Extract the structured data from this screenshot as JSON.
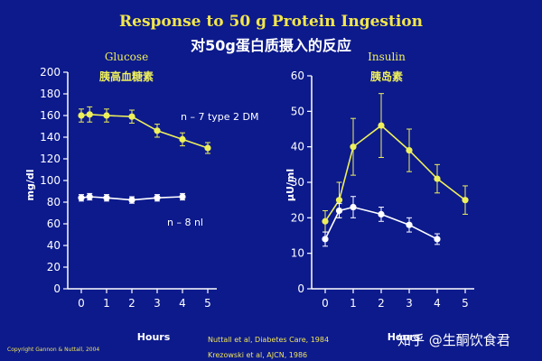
{
  "title": "Response to 50 g Protein Ingestion",
  "title_cn": "对50g蛋白质摄入的反应",
  "colors": {
    "background": "#0c1a8c",
    "title": "#f2e64a",
    "yellow_series": "#eef05a",
    "white_series": "#ffffff",
    "axis": "#ffffff"
  },
  "chart_data": [
    {
      "type": "line",
      "title": "Glucose",
      "title_cn": "胰高血糖素",
      "xlabel": "Hours",
      "ylabel": "mg/dl",
      "xlim": [
        0,
        5
      ],
      "ylim": [
        0,
        200
      ],
      "xticks": [
        0,
        1,
        2,
        3,
        4,
        5
      ],
      "yticks": [
        0,
        20,
        40,
        60,
        80,
        100,
        120,
        140,
        160,
        180,
        200
      ],
      "series": [
        {
          "name": "type 2 DM",
          "label": "n – 7  type 2 DM",
          "color": "#eef05a",
          "x": [
            0,
            0.33,
            1,
            2,
            3,
            4,
            5
          ],
          "y": [
            160,
            161,
            160,
            159,
            146,
            138,
            130
          ],
          "err": [
            6,
            7,
            6,
            6,
            6,
            6,
            5
          ]
        },
        {
          "name": "nl",
          "label": "n – 8 nl",
          "color": "#ffffff",
          "x": [
            0,
            0.33,
            1,
            2,
            3,
            4
          ],
          "y": [
            84,
            85,
            84,
            82,
            84,
            85
          ],
          "err": [
            3,
            3,
            3,
            3,
            3,
            3
          ]
        }
      ]
    },
    {
      "type": "line",
      "title": "Insulin",
      "title_cn": "胰岛素",
      "xlabel": "Hours",
      "ylabel": "μU/ml",
      "xlim": [
        0,
        5
      ],
      "ylim": [
        0,
        60
      ],
      "xticks": [
        0,
        1,
        2,
        3,
        4,
        5
      ],
      "yticks": [
        0,
        10,
        20,
        30,
        40,
        50,
        60
      ],
      "series": [
        {
          "name": "type 2 DM",
          "color": "#eef05a",
          "x": [
            0,
            0.5,
            1,
            2,
            3,
            4,
            5
          ],
          "y": [
            19,
            25,
            40,
            46,
            39,
            31,
            25
          ],
          "err": [
            3,
            5,
            8,
            9,
            6,
            4,
            4
          ]
        },
        {
          "name": "nl",
          "color": "#ffffff",
          "x": [
            0,
            0.5,
            1,
            2,
            3,
            4
          ],
          "y": [
            14,
            22,
            23,
            21,
            18,
            14
          ],
          "err": [
            2,
            2,
            3,
            2,
            2,
            1.5
          ]
        }
      ]
    }
  ],
  "citations": [
    "Nuttall et al, Diabetes Care, 1984",
    "Krezowski et al, AJCN, 1986"
  ],
  "copyright": "Copyright Gannon & Nuttall, 2004",
  "watermark": "知乎 @生酮饮食君"
}
